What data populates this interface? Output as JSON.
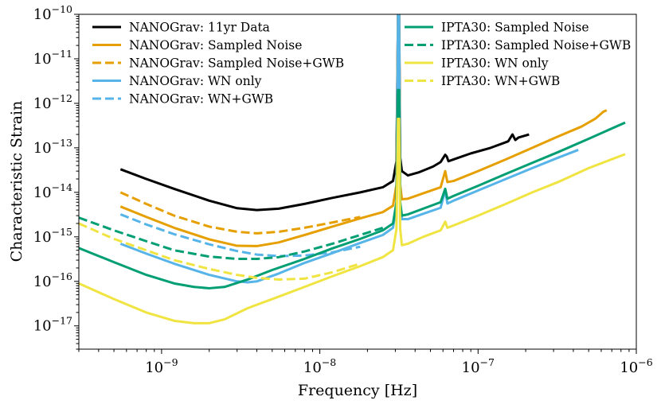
{
  "chart_data": {
    "type": "line",
    "title": "",
    "xlabel": "Frequency [Hz]",
    "ylabel": "Characteristic Strain",
    "xscale": "log",
    "yscale": "log",
    "xlim": [
      3e-10,
      1e-06
    ],
    "ylim": [
      3e-18,
      1e-10
    ],
    "grid": false,
    "legend_position": "top",
    "x_major_ticks": [
      {
        "value": 1e-09,
        "base": "10",
        "exp": "−9"
      },
      {
        "value": 1e-08,
        "base": "10",
        "exp": "−8"
      },
      {
        "value": 1e-07,
        "base": "10",
        "exp": "−7"
      },
      {
        "value": 1e-06,
        "base": "10",
        "exp": "−6"
      }
    ],
    "y_major_ticks": [
      {
        "value": 1e-17,
        "base": "10",
        "exp": "−17"
      },
      {
        "value": 1e-16,
        "base": "10",
        "exp": "−16"
      },
      {
        "value": 1e-15,
        "base": "10",
        "exp": "−15"
      },
      {
        "value": 1e-14,
        "base": "10",
        "exp": "−14"
      },
      {
        "value": 1e-13,
        "base": "10",
        "exp": "−13"
      },
      {
        "value": 1e-12,
        "base": "10",
        "exp": "−12"
      },
      {
        "value": 1e-11,
        "base": "10",
        "exp": "−11"
      },
      {
        "value": 1e-10,
        "base": "10",
        "exp": "−10"
      }
    ],
    "series": [
      {
        "name": "NANOGrav: 11yr Data",
        "color": "#000000",
        "dash": "solid",
        "x": [
          5.5e-10,
          8e-10,
          1.2e-09,
          2e-09,
          3e-09,
          4e-09,
          5.5e-09,
          8e-09,
          1.2e-08,
          1.8e-08,
          2.5e-08,
          2.9e-08,
          3.05e-08,
          3.12e-08,
          3.17e-08,
          3.22e-08,
          3.3e-08,
          3.6e-08,
          4.2e-08,
          5.2e-08,
          5.8e-08,
          6.2e-08,
          6.35e-08,
          6.5e-08,
          7e-08,
          9e-08,
          1.2e-07,
          1.55e-07,
          1.65e-07,
          1.72e-07,
          1.8e-07,
          2.1e-07
        ],
        "y": [
          3.3e-14,
          2e-14,
          1.2e-14,
          6.5e-15,
          4.4e-15,
          4e-15,
          4.3e-15,
          5.5e-15,
          7.5e-15,
          1e-14,
          1.3e-14,
          1.8e-14,
          5e-14,
          1e-10,
          1e-10,
          6e-14,
          3e-14,
          2.4e-14,
          2.8e-14,
          3.8e-14,
          4.8e-14,
          7e-14,
          6.3e-14,
          5e-14,
          5.5e-14,
          7.5e-14,
          1e-13,
          1.4e-13,
          2e-13,
          1.5e-13,
          1.7e-13,
          2e-13
        ]
      },
      {
        "name": "NANOGrav: Sampled Noise",
        "color": "#E69F00",
        "dash": "solid",
        "x": [
          5.5e-10,
          8e-10,
          1.2e-09,
          2e-09,
          3e-09,
          4e-09,
          5.5e-09,
          8e-09,
          1.2e-08,
          1.8e-08,
          2.5e-08,
          2.9e-08,
          3.05e-08,
          3.12e-08,
          3.17e-08,
          3.22e-08,
          3.3e-08,
          3.6e-08,
          4.5e-08,
          5.8e-08,
          6.2e-08,
          6.4e-08,
          7e-08,
          1e-07,
          1.5e-07,
          2.2e-07,
          3.2e-07,
          4.5e-07,
          5.5e-07,
          6.2e-07,
          6.5e-07
        ],
        "y": [
          4.8e-15,
          2.8e-15,
          1.6e-15,
          8.8e-16,
          6.3e-16,
          6.2e-16,
          7.5e-16,
          1.1e-15,
          1.7e-15,
          2.6e-15,
          3.6e-15,
          5e-15,
          1.5e-14,
          1e-10,
          1e-10,
          1.5e-14,
          7e-15,
          7.2e-15,
          9.5e-15,
          1.3e-14,
          3e-14,
          1.7e-14,
          1.8e-14,
          3e-14,
          5.5e-14,
          1e-13,
          1.8e-13,
          3e-13,
          4.5e-13,
          6.5e-13,
          7e-13
        ]
      },
      {
        "name": "NANOGrav: Sampled Noise+GWB",
        "color": "#E69F00",
        "dash": "dashed",
        "x": [
          5.5e-10,
          8e-10,
          1.2e-09,
          2e-09,
          3e-09,
          4e-09,
          5.5e-09,
          8e-09,
          1.2e-08,
          1.8e-08
        ],
        "y": [
          1e-14,
          5.5e-15,
          3e-15,
          1.7e-15,
          1.3e-15,
          1.2e-15,
          1.3e-15,
          1.6e-15,
          2.1e-15,
          2.8e-15
        ]
      },
      {
        "name": "NANOGrav: WN only",
        "color": "#56B4E9",
        "dash": "solid",
        "x": [
          5.5e-10,
          8e-10,
          1.2e-09,
          2e-09,
          3e-09,
          3.5e-09,
          4e-09,
          5.5e-09,
          8e-09,
          1.2e-08,
          1.8e-08,
          2.5e-08,
          2.9e-08,
          3.05e-08,
          3.12e-08,
          3.17e-08,
          3.22e-08,
          3.3e-08,
          3.6e-08,
          4.5e-08,
          5.8e-08,
          6.2e-08,
          6.4e-08,
          7e-08,
          1e-07,
          1.5e-07,
          2.2e-07,
          3.2e-07,
          4.3e-07
        ],
        "y": [
          7e-16,
          4.2e-16,
          2.5e-16,
          1.4e-16,
          1e-16,
          9.5e-17,
          1e-16,
          1.5e-16,
          2.6e-16,
          4.3e-16,
          7.3e-16,
          1.1e-15,
          1.6e-15,
          5e-15,
          1e-10,
          1e-10,
          5e-15,
          2.5e-15,
          2.5e-15,
          3.3e-15,
          4.5e-15,
          1.1e-14,
          5.6e-15,
          6.5e-15,
          1.1e-14,
          2e-14,
          3.5e-14,
          6e-14,
          9e-14
        ]
      },
      {
        "name": "NANOGrav: WN+GWB",
        "color": "#56B4E9",
        "dash": "dashed",
        "x": [
          5.5e-10,
          8e-10,
          1.2e-09,
          2e-09,
          3e-09,
          4e-09,
          5.5e-09,
          8e-09,
          1.2e-08,
          1.8e-08
        ],
        "y": [
          3.2e-15,
          1.9e-15,
          1.15e-15,
          6.8e-16,
          4.8e-16,
          4e-16,
          3.7e-16,
          3.8e-16,
          4.5e-16,
          6e-16
        ]
      },
      {
        "name": "IPTA30: Sampled Noise",
        "color": "#009E73",
        "dash": "solid",
        "x": [
          3e-10,
          5e-10,
          8e-10,
          1.2e-09,
          1.6e-09,
          2e-09,
          2.5e-09,
          3.5e-09,
          5e-09,
          8e-09,
          1.2e-08,
          1.8e-08,
          2.5e-08,
          2.9e-08,
          3.05e-08,
          3.12e-08,
          3.17e-08,
          3.22e-08,
          3.3e-08,
          3.6e-08,
          4.5e-08,
          5.8e-08,
          6.2e-08,
          6.4e-08,
          7e-08,
          1e-07,
          1.5e-07,
          2.2e-07,
          3.2e-07,
          5e-07,
          8.5e-07
        ],
        "y": [
          5.6e-16,
          2.7e-16,
          1.4e-16,
          9e-17,
          7.5e-17,
          7e-17,
          7.5e-17,
          1.1e-16,
          1.8e-16,
          3.2e-16,
          5.5e-16,
          9e-16,
          1.4e-15,
          2e-15,
          6e-15,
          2e-12,
          2e-12,
          6e-15,
          3e-15,
          3.2e-15,
          4.3e-15,
          6e-15,
          1.2e-14,
          7.2e-15,
          8.3e-15,
          1.4e-14,
          2.6e-14,
          4.6e-14,
          8e-14,
          1.6e-13,
          3.7e-13
        ]
      },
      {
        "name": "IPTA30: Sampled Noise+GWB",
        "color": "#009E73",
        "dash": "dashed",
        "x": [
          3e-10,
          5e-10,
          8e-10,
          1.2e-09,
          2e-09,
          3e-09,
          4e-09,
          5.5e-09,
          8e-09,
          1.2e-08,
          1.8e-08,
          2.5e-08
        ],
        "y": [
          2.7e-15,
          1.4e-15,
          8e-16,
          5e-16,
          3.6e-16,
          3.2e-16,
          3.2e-16,
          3.5e-16,
          4.7e-16,
          7e-16,
          1.1e-15,
          1.6e-15
        ]
      },
      {
        "name": "IPTA30: WN only",
        "color": "#F0E442",
        "dash": "solid",
        "x": [
          3e-10,
          5e-10,
          8e-10,
          1.2e-09,
          1.6e-09,
          2e-09,
          2.5e-09,
          3.5e-09,
          5e-09,
          8e-09,
          1.2e-08,
          1.8e-08,
          2.5e-08,
          2.9e-08,
          3.05e-08,
          3.12e-08,
          3.17e-08,
          3.22e-08,
          3.3e-08,
          3.6e-08,
          4.5e-08,
          5.8e-08,
          6.2e-08,
          6.4e-08,
          7e-08,
          1e-07,
          1.5e-07,
          2.2e-07,
          3.2e-07,
          5e-07,
          8.5e-07
        ],
        "y": [
          9e-17,
          4e-17,
          2e-17,
          1.3e-17,
          1.15e-17,
          1.15e-17,
          1.4e-17,
          2.5e-17,
          4e-17,
          7.5e-17,
          1.3e-16,
          2.2e-16,
          3.5e-16,
          5e-16,
          1.5e-15,
          4.5e-13,
          4.5e-13,
          1.5e-15,
          6.5e-16,
          7e-16,
          1e-15,
          1.4e-15,
          2.2e-15,
          1.6e-15,
          1.8e-15,
          3e-15,
          5.5e-15,
          1e-14,
          1.7e-14,
          3.5e-14,
          7.2e-14
        ]
      },
      {
        "name": "IPTA30: WN+GWB",
        "color": "#F0E442",
        "dash": "dashed",
        "x": [
          3e-10,
          5e-10,
          8e-10,
          1.2e-09,
          2e-09,
          3e-09,
          4e-09,
          5.5e-09,
          8e-09,
          1.2e-08,
          1.8e-08
        ],
        "y": [
          2e-15,
          9e-16,
          5e-16,
          3e-16,
          1.9e-16,
          1.4e-16,
          1.2e-16,
          1.1e-16,
          1.15e-16,
          1.6e-16,
          2.5e-16
        ]
      }
    ]
  }
}
